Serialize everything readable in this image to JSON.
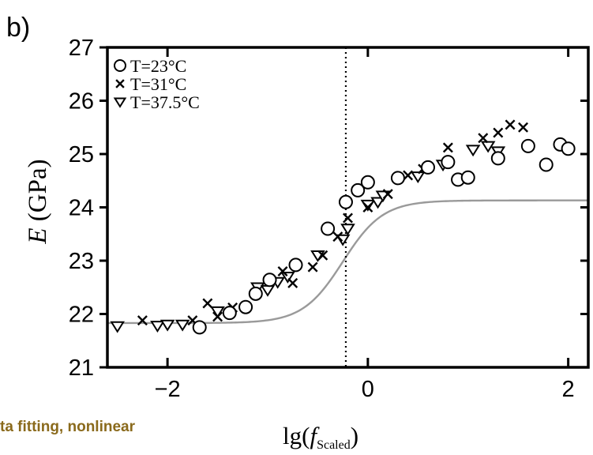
{
  "panel_label": "b)",
  "caption_fragment": "ta fitting,  nonlinear",
  "colors": {
    "axis": "#000000",
    "markers": "#000000",
    "fit_curve": "#9a9a9a",
    "dotted_line": "#000000",
    "caption": "#8a6a1c"
  },
  "chart_data": {
    "type": "scatter",
    "xlim": [
      -2.6,
      2.2
    ],
    "ylim": [
      21,
      27
    ],
    "xticks": [
      -2,
      0,
      2
    ],
    "xtick_labels": [
      "−2",
      "0",
      "2"
    ],
    "yticks": [
      21,
      22,
      23,
      24,
      25,
      26,
      27
    ],
    "ytick_labels": [
      "21",
      "22",
      "23",
      "24",
      "25",
      "26",
      "27"
    ],
    "ylabel_italic": "E",
    "ylabel_rest": " (GPa)",
    "xlabel_main": "lg(",
    "xlabel_var": "f",
    "xlabel_sub": "Scaled",
    "xlabel_close": ")",
    "legend_placement": "top-left",
    "vertical_reference_x": -0.22,
    "series": [
      {
        "name": "T=23°C",
        "marker": "circle",
        "points": [
          [
            -1.68,
            21.75
          ],
          [
            -1.38,
            22.02
          ],
          [
            -1.22,
            22.13
          ],
          [
            -1.12,
            22.38
          ],
          [
            -0.98,
            22.64
          ],
          [
            -0.72,
            22.92
          ],
          [
            -0.4,
            23.6
          ],
          [
            -0.22,
            24.1
          ],
          [
            -0.1,
            24.32
          ],
          [
            0.0,
            24.47
          ],
          [
            0.3,
            24.55
          ],
          [
            0.6,
            24.75
          ],
          [
            0.8,
            24.85
          ],
          [
            0.9,
            24.52
          ],
          [
            1.0,
            24.56
          ],
          [
            1.3,
            24.92
          ],
          [
            1.6,
            25.15
          ],
          [
            1.78,
            24.8
          ],
          [
            1.92,
            25.18
          ],
          [
            2.0,
            25.1
          ]
        ]
      },
      {
        "name": "T=31°C",
        "marker": "cross",
        "points": [
          [
            -2.25,
            21.88
          ],
          [
            -1.75,
            21.88
          ],
          [
            -1.6,
            22.2
          ],
          [
            -1.5,
            21.95
          ],
          [
            -1.35,
            22.12
          ],
          [
            -0.85,
            22.8
          ],
          [
            -0.75,
            22.58
          ],
          [
            -0.55,
            22.88
          ],
          [
            -0.45,
            23.1
          ],
          [
            -0.3,
            23.45
          ],
          [
            -0.2,
            23.8
          ],
          [
            0.0,
            24.0
          ],
          [
            0.2,
            24.25
          ],
          [
            0.4,
            24.6
          ],
          [
            0.55,
            24.72
          ],
          [
            0.8,
            25.12
          ],
          [
            1.15,
            25.3
          ],
          [
            1.3,
            25.4
          ],
          [
            1.42,
            25.55
          ],
          [
            1.55,
            25.5
          ]
        ]
      },
      {
        "name": "T=37.5°C",
        "marker": "triangle-down",
        "points": [
          [
            -2.5,
            21.77
          ],
          [
            -2.1,
            21.78
          ],
          [
            -2.0,
            21.8
          ],
          [
            -1.85,
            21.8
          ],
          [
            -1.5,
            22.05
          ],
          [
            -1.1,
            22.5
          ],
          [
            -1.0,
            22.45
          ],
          [
            -0.9,
            22.6
          ],
          [
            -0.8,
            22.7
          ],
          [
            -0.5,
            23.1
          ],
          [
            -0.25,
            23.4
          ],
          [
            -0.2,
            23.6
          ],
          [
            0.0,
            24.05
          ],
          [
            0.1,
            24.1
          ],
          [
            0.15,
            24.22
          ],
          [
            0.5,
            24.58
          ],
          [
            0.75,
            24.8
          ],
          [
            1.05,
            25.08
          ],
          [
            1.2,
            25.15
          ],
          [
            1.3,
            25.05
          ]
        ]
      }
    ],
    "fit_curve": {
      "name": "",
      "type": "logistic",
      "lower": 21.83,
      "upper": 24.13,
      "center": -0.25,
      "scale": 0.2,
      "x_range": [
        -2.6,
        2.2
      ]
    }
  }
}
